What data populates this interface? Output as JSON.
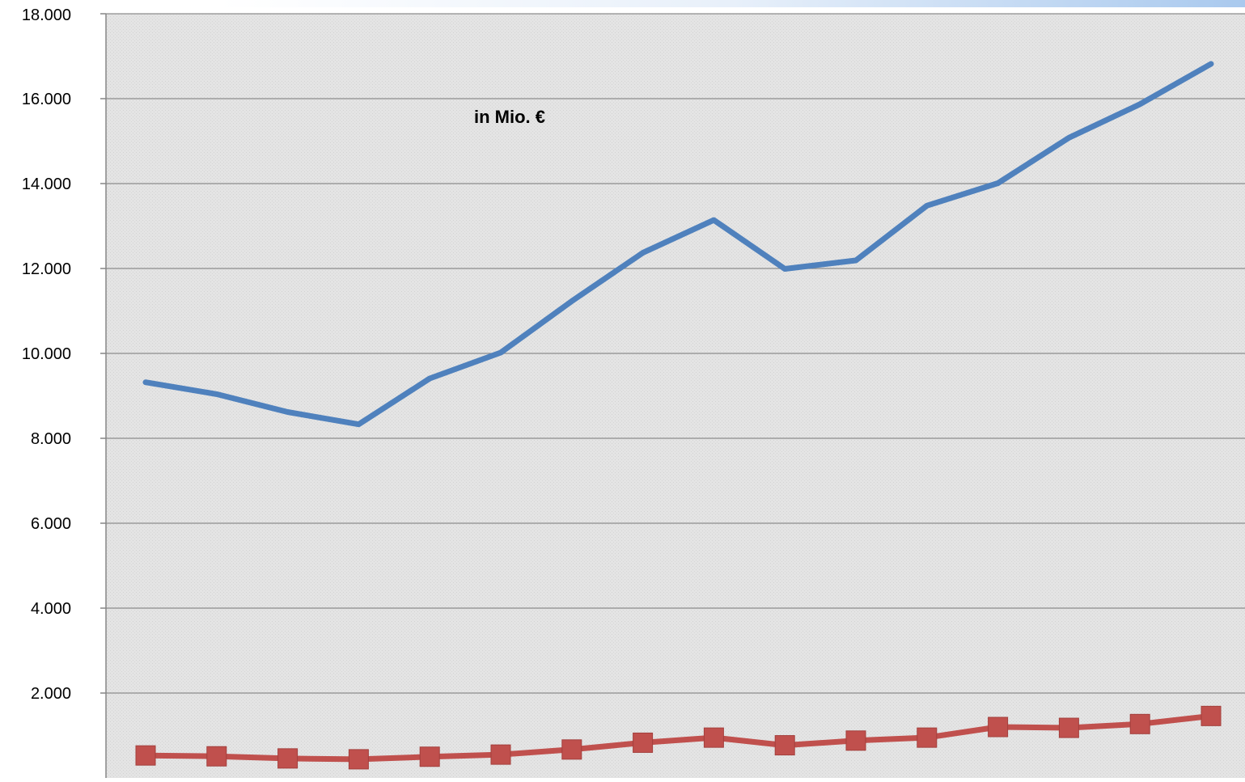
{
  "chart_data": {
    "type": "line",
    "annotation": "in Mio. €",
    "y_tick_labels": [
      "2.000",
      "4.000",
      "6.000",
      "8.000",
      "10.000",
      "12.000",
      "14.000",
      "16.000",
      "18.000"
    ],
    "y_ticks": [
      2000,
      4000,
      6000,
      8000,
      10000,
      12000,
      14000,
      16000,
      18000
    ],
    "ylim": [
      0,
      18000
    ],
    "x": [
      1,
      2,
      3,
      4,
      5,
      6,
      7,
      8,
      9,
      10,
      11,
      12,
      13,
      14,
      15,
      16
    ],
    "grid": true,
    "series": [
      {
        "color": "#4f81bd",
        "marker": "none",
        "values": [
          9320,
          9040,
          8620,
          8330,
          9410,
          10020,
          11230,
          12370,
          13140,
          11990,
          12190,
          13480,
          14010,
          15080,
          15870,
          16820
        ]
      },
      {
        "color": "#c0504d",
        "marker": "square",
        "values": [
          530,
          510,
          460,
          440,
          500,
          550,
          670,
          830,
          950,
          770,
          880,
          950,
          1200,
          1180,
          1270,
          1460
        ]
      }
    ]
  }
}
